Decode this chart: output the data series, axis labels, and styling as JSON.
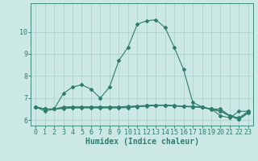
{
  "title": "",
  "xlabel": "Humidex (Indice chaleur)",
  "x": [
    0,
    1,
    2,
    3,
    4,
    5,
    6,
    7,
    8,
    9,
    10,
    11,
    12,
    13,
    14,
    15,
    16,
    17,
    18,
    19,
    20,
    21,
    22,
    23
  ],
  "series": [
    [
      6.6,
      6.4,
      6.5,
      7.2,
      7.5,
      7.6,
      7.4,
      7.0,
      7.5,
      8.7,
      9.3,
      10.35,
      10.5,
      10.55,
      10.2,
      9.3,
      8.3,
      6.8,
      6.6,
      6.5,
      6.2,
      6.1,
      6.4,
      6.4
    ],
    [
      6.6,
      6.5,
      6.5,
      6.6,
      6.6,
      6.6,
      6.6,
      6.6,
      6.6,
      6.6,
      6.62,
      6.64,
      6.66,
      6.68,
      6.68,
      6.65,
      6.62,
      6.6,
      6.58,
      6.5,
      6.5,
      6.2,
      6.1,
      6.4
    ],
    [
      6.6,
      6.5,
      6.5,
      6.55,
      6.58,
      6.58,
      6.58,
      6.58,
      6.58,
      6.58,
      6.6,
      6.62,
      6.65,
      6.68,
      6.68,
      6.66,
      6.63,
      6.62,
      6.6,
      6.5,
      6.42,
      6.2,
      6.05,
      6.35
    ],
    [
      6.6,
      6.5,
      6.5,
      6.52,
      6.55,
      6.55,
      6.55,
      6.55,
      6.55,
      6.55,
      6.57,
      6.6,
      6.63,
      6.66,
      6.66,
      6.64,
      6.61,
      6.6,
      6.58,
      6.48,
      6.4,
      6.18,
      6.03,
      6.32
    ]
  ],
  "line_color": "#2e7d6e",
  "bg_color": "#cce8e4",
  "grid_color": "#aacfca",
  "ylim": [
    5.75,
    11.3
  ],
  "xlim": [
    -0.5,
    23.5
  ],
  "yticks": [
    6,
    7,
    8,
    9,
    10
  ],
  "xticks": [
    0,
    1,
    2,
    3,
    4,
    5,
    6,
    7,
    8,
    9,
    10,
    11,
    12,
    13,
    14,
    15,
    16,
    17,
    18,
    19,
    20,
    21,
    22,
    23
  ],
  "tick_fontsize": 6.0,
  "label_fontsize": 7.0,
  "marker": "D",
  "markersize": 2.0,
  "linewidth": 0.8
}
